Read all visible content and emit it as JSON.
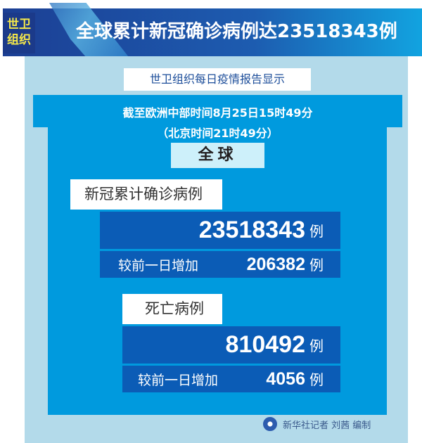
{
  "header": {
    "badge_line1": "世卫",
    "badge_line2": "组织",
    "title": "全球累计新冠确诊病例达23518343例"
  },
  "subtitle": "世卫组织每日疫情报告显示",
  "time_line1": "截至欧洲中部时间8月25日15时49分",
  "time_line2": "（北京时间21时49分）",
  "region": "全球",
  "cases": {
    "label": "新冠累计确诊病例",
    "total": "23518343",
    "unit": "例",
    "compare_label": "较前一日增加",
    "increase": "206382"
  },
  "deaths": {
    "label": "死亡病例",
    "total": "810492",
    "unit": "例",
    "compare_label": "较前一日增加",
    "increase": "4056"
  },
  "credit": "新华社记者 刘茜 编制",
  "colors": {
    "banner": "#1d5cb0",
    "panel": "#b3daea",
    "blue": "#009ade",
    "dark_box": "#0b5cb6",
    "badge_text": "#f5e84a"
  }
}
